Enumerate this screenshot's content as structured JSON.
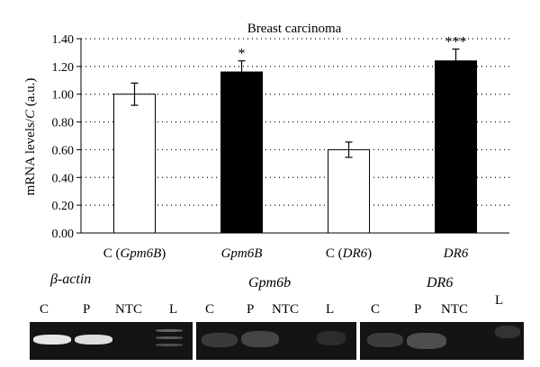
{
  "chart_data": {
    "type": "bar",
    "title": "Breast carcinoma",
    "ylabel_parts": [
      "mRNA levels/",
      "C",
      " (a.u.)"
    ],
    "ylim": [
      0,
      1.4
    ],
    "yticks": [
      "0.00",
      "0.20",
      "0.40",
      "0.60",
      "0.80",
      "1.00",
      "1.20",
      "1.40"
    ],
    "grid": "dotted-horizontal",
    "categories": [
      {
        "prefix": "C (",
        "gene": "Gpm6B",
        "suffix": ")",
        "fill": "#ffffff"
      },
      {
        "prefix": "",
        "gene": "Gpm6B",
        "suffix": "",
        "fill": "#000000"
      },
      {
        "prefix": "C (",
        "gene": "DR6",
        "suffix": ")",
        "fill": "#ffffff"
      },
      {
        "prefix": "",
        "gene": "DR6",
        "suffix": "",
        "fill": "#000000"
      }
    ],
    "values": [
      1.0,
      1.16,
      0.6,
      1.24
    ],
    "errors": [
      0.08,
      0.08,
      0.055,
      0.085
    ],
    "significance": [
      "",
      "*",
      "",
      "***"
    ]
  },
  "gels": [
    {
      "title": "β-actin",
      "lanes": [
        "C",
        "P",
        "NTC",
        "L"
      ]
    },
    {
      "title": "Gpm6b",
      "lanes": [
        "C",
        "P",
        "NTC",
        "L"
      ]
    },
    {
      "title": "DR6",
      "lanes": [
        "C",
        "P",
        "NTC",
        "L"
      ]
    }
  ]
}
